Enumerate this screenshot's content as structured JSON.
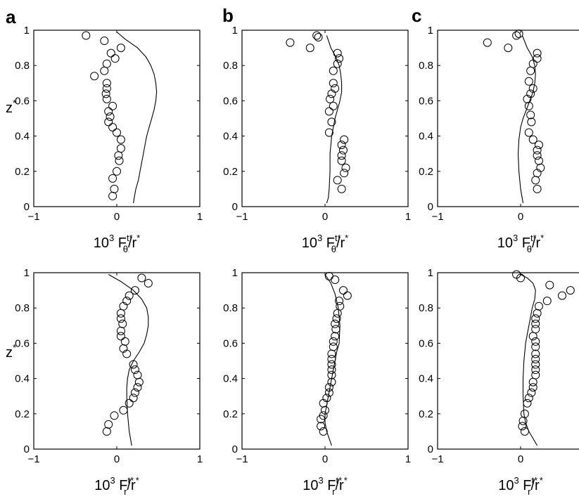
{
  "panel_letters": [
    "a",
    "b",
    "c"
  ],
  "ylabel": {
    "main": "z",
    "sup": "*"
  },
  "xlabel_top": {
    "prefix": "10",
    "exp": "3",
    "F": " F",
    "sup": "t*",
    "sub": "θ",
    "slash": "/r",
    "sup2": "*"
  },
  "xlabel_bottom": {
    "prefix": "10",
    "exp": "3",
    "F": " F",
    "sup": "t*",
    "sub": "r",
    "slash": "/r",
    "sup2": "*"
  },
  "chart_data": [
    {
      "type": "line+scatter",
      "panel": "a",
      "row": "top",
      "xlim": [
        -1,
        1
      ],
      "ylim": [
        0,
        1
      ],
      "xticks": [
        "−1",
        "0",
        "1"
      ],
      "yticks": [
        "0",
        "0.2",
        "0.4",
        "0.6",
        "0.8",
        "1"
      ],
      "line": {
        "x": [
          0.2,
          0.21,
          0.23,
          0.26,
          0.28,
          0.3,
          0.32,
          0.34,
          0.36,
          0.39,
          0.42,
          0.45,
          0.47,
          0.48,
          0.47,
          0.45,
          0.41,
          0.35,
          0.25,
          0.1,
          0.0
        ],
        "y": [
          0.02,
          0.05,
          0.1,
          0.15,
          0.2,
          0.25,
          0.3,
          0.35,
          0.4,
          0.45,
          0.5,
          0.55,
          0.6,
          0.65,
          0.7,
          0.75,
          0.8,
          0.85,
          0.9,
          0.95,
          0.99
        ]
      },
      "scatter": {
        "x": [
          -0.37,
          -0.15,
          0.05,
          -0.07,
          -0.02,
          -0.12,
          -0.15,
          -0.27,
          -0.12,
          -0.12,
          -0.13,
          -0.12,
          -0.05,
          -0.1,
          -0.08,
          -0.1,
          -0.05,
          0.0,
          0.05,
          0.05,
          0.02,
          0.03,
          0.0,
          -0.05,
          -0.03,
          -0.05
        ],
        "y": [
          0.97,
          0.94,
          0.9,
          0.87,
          0.84,
          0.81,
          0.77,
          0.74,
          0.7,
          0.67,
          0.64,
          0.61,
          0.57,
          0.54,
          0.51,
          0.48,
          0.45,
          0.42,
          0.38,
          0.33,
          0.29,
          0.26,
          0.2,
          0.16,
          0.1,
          0.06
        ]
      }
    },
    {
      "type": "line+scatter",
      "panel": "b",
      "row": "top",
      "xlim": [
        -1,
        1
      ],
      "ylim": [
        0,
        1
      ],
      "xticks": [
        "−1",
        "0",
        "1"
      ],
      "yticks": [
        "0",
        "0.2",
        "0.4",
        "0.6",
        "0.8",
        "1"
      ],
      "line": {
        "x": [
          0.02,
          0.04,
          0.05,
          0.06,
          0.06,
          0.07,
          0.08,
          0.1,
          0.12,
          0.15,
          0.18,
          0.2,
          0.2,
          0.19,
          0.17,
          0.13,
          0.07,
          0.02
        ],
        "y": [
          0.02,
          0.05,
          0.1,
          0.2,
          0.3,
          0.35,
          0.4,
          0.45,
          0.5,
          0.55,
          0.6,
          0.65,
          0.7,
          0.75,
          0.8,
          0.85,
          0.9,
          0.97
        ]
      },
      "scatter": {
        "x": [
          -0.42,
          -0.1,
          -0.08,
          -0.18,
          0.15,
          0.17,
          0.15,
          0.1,
          0.1,
          0.12,
          0.08,
          0.06,
          0.1,
          0.05,
          0.08,
          0.05,
          0.23,
          0.2,
          0.22,
          0.2,
          0.2,
          0.25,
          0.23,
          0.15,
          0.2
        ],
        "y": [
          0.93,
          0.97,
          0.96,
          0.9,
          0.87,
          0.84,
          0.81,
          0.77,
          0.7,
          0.67,
          0.64,
          0.61,
          0.57,
          0.54,
          0.48,
          0.42,
          0.38,
          0.35,
          0.32,
          0.29,
          0.26,
          0.22,
          0.19,
          0.15,
          0.1
        ]
      }
    },
    {
      "type": "line+scatter",
      "panel": "c",
      "row": "top",
      "xlim": [
        -1,
        1
      ],
      "ylim": [
        0,
        1
      ],
      "xticks": [
        "−1",
        "0",
        ""
      ],
      "yticks": [
        "0",
        "0.2",
        "0.4",
        "0.6",
        "0.8",
        "1"
      ],
      "line": {
        "x": [
          0.03,
          0.0,
          -0.02,
          -0.03,
          -0.02,
          0.0,
          0.03,
          0.07,
          0.11,
          0.15,
          0.17,
          0.18,
          0.17,
          0.14,
          0.08,
          0.02
        ],
        "y": [
          0.02,
          0.1,
          0.2,
          0.3,
          0.38,
          0.45,
          0.5,
          0.55,
          0.6,
          0.65,
          0.7,
          0.75,
          0.8,
          0.85,
          0.9,
          0.97
        ]
      },
      "scatter": {
        "x": [
          -0.4,
          -0.15,
          -0.05,
          -0.02,
          0.2,
          0.2,
          0.15,
          0.12,
          0.1,
          0.15,
          0.12,
          0.08,
          0.1,
          0.12,
          0.13,
          0.1,
          0.15,
          0.22,
          0.2,
          0.2,
          0.22,
          0.24,
          0.2,
          0.18,
          0.2
        ],
        "y": [
          0.93,
          0.9,
          0.97,
          0.98,
          0.87,
          0.84,
          0.81,
          0.77,
          0.71,
          0.67,
          0.64,
          0.61,
          0.57,
          0.52,
          0.48,
          0.42,
          0.38,
          0.35,
          0.32,
          0.29,
          0.26,
          0.22,
          0.19,
          0.15,
          0.1
        ]
      }
    },
    {
      "type": "line+scatter",
      "panel": "a",
      "row": "bottom",
      "xlim": [
        -1,
        1
      ],
      "ylim": [
        0,
        1
      ],
      "xticks": [
        "−1",
        "0",
        "1"
      ],
      "yticks": [
        "0",
        "0.2",
        "0.4",
        "0.6",
        "0.8",
        "1"
      ],
      "line": {
        "x": [
          0.18,
          0.15,
          0.13,
          0.12,
          0.12,
          0.13,
          0.15,
          0.2,
          0.27,
          0.33,
          0.36,
          0.38,
          0.38,
          0.36,
          0.3,
          0.2,
          0.05,
          -0.1
        ],
        "y": [
          0.02,
          0.1,
          0.2,
          0.3,
          0.35,
          0.4,
          0.45,
          0.5,
          0.55,
          0.6,
          0.65,
          0.7,
          0.75,
          0.8,
          0.85,
          0.9,
          0.95,
          0.99
        ]
      },
      "scatter": {
        "x": [
          0.3,
          0.38,
          0.22,
          0.15,
          0.12,
          0.08,
          0.05,
          0.05,
          0.07,
          0.05,
          0.05,
          0.1,
          0.08,
          0.12,
          0.2,
          0.22,
          0.25,
          0.27,
          0.25,
          0.22,
          0.2,
          0.15,
          0.08,
          -0.03,
          -0.1,
          -0.12
        ],
        "y": [
          0.97,
          0.94,
          0.9,
          0.87,
          0.84,
          0.81,
          0.77,
          0.74,
          0.71,
          0.67,
          0.64,
          0.61,
          0.57,
          0.54,
          0.48,
          0.45,
          0.42,
          0.38,
          0.35,
          0.32,
          0.29,
          0.26,
          0.22,
          0.19,
          0.14,
          0.1
        ]
      }
    },
    {
      "type": "line+scatter",
      "panel": "b",
      "row": "bottom",
      "xlim": [
        -1,
        1
      ],
      "ylim": [
        0,
        1
      ],
      "xticks": [
        "−1",
        "0",
        "1"
      ],
      "yticks": [
        "0",
        "0.2",
        "0.4",
        "0.6",
        "0.8",
        "1"
      ],
      "line": {
        "x": [
          0.08,
          0.05,
          0.02,
          0.0,
          0.0,
          0.02,
          0.04,
          0.06,
          0.08,
          0.1,
          0.12,
          0.14,
          0.17,
          0.18,
          0.16,
          0.12,
          0.07,
          0.0
        ],
        "y": [
          0.02,
          0.06,
          0.1,
          0.15,
          0.2,
          0.25,
          0.3,
          0.35,
          0.4,
          0.45,
          0.5,
          0.55,
          0.6,
          0.7,
          0.8,
          0.88,
          0.94,
          0.99
        ]
      },
      "scatter": {
        "x": [
          0.05,
          0.12,
          0.22,
          0.27,
          0.17,
          0.18,
          0.15,
          0.14,
          0.12,
          0.13,
          0.12,
          0.1,
          0.1,
          0.08,
          0.08,
          0.08,
          0.08,
          0.08,
          0.08,
          0.05,
          0.05,
          0.02,
          -0.02,
          0.0,
          -0.02,
          -0.05,
          -0.05,
          -0.02
        ],
        "y": [
          0.98,
          0.96,
          0.9,
          0.87,
          0.84,
          0.81,
          0.77,
          0.74,
          0.71,
          0.68,
          0.64,
          0.61,
          0.58,
          0.54,
          0.51,
          0.48,
          0.45,
          0.42,
          0.38,
          0.35,
          0.32,
          0.29,
          0.26,
          0.22,
          0.19,
          0.17,
          0.13,
          0.1
        ]
      }
    },
    {
      "type": "line+scatter",
      "panel": "c",
      "row": "bottom",
      "xlim": [
        -1,
        1
      ],
      "ylim": [
        0,
        1
      ],
      "xticks": [
        "−1",
        "0",
        ""
      ],
      "yticks": [
        "0",
        "0.2",
        "0.4",
        "0.6",
        "0.8",
        "1"
      ],
      "line": {
        "x": [
          0.2,
          0.15,
          0.1,
          0.06,
          0.04,
          0.03,
          0.03,
          0.04,
          0.06,
          0.08,
          0.1,
          0.12,
          0.14,
          0.17,
          0.18,
          0.15,
          0.08,
          0.0
        ],
        "y": [
          0.02,
          0.06,
          0.1,
          0.15,
          0.2,
          0.3,
          0.4,
          0.5,
          0.6,
          0.65,
          0.7,
          0.75,
          0.8,
          0.85,
          0.9,
          0.94,
          0.97,
          0.99
        ]
      },
      "scatter": {
        "x": [
          -0.05,
          0.0,
          0.35,
          0.6,
          0.5,
          0.32,
          0.22,
          0.2,
          0.18,
          0.18,
          0.18,
          0.15,
          0.18,
          0.18,
          0.18,
          0.18,
          0.18,
          0.18,
          0.18,
          0.15,
          0.15,
          0.13,
          0.1,
          0.08,
          0.05,
          0.03,
          0.02,
          0.05
        ],
        "y": [
          0.99,
          0.97,
          0.93,
          0.9,
          0.87,
          0.84,
          0.81,
          0.77,
          0.74,
          0.71,
          0.68,
          0.64,
          0.61,
          0.58,
          0.54,
          0.51,
          0.48,
          0.45,
          0.42,
          0.38,
          0.35,
          0.32,
          0.29,
          0.26,
          0.2,
          0.16,
          0.13,
          0.1
        ]
      }
    }
  ]
}
